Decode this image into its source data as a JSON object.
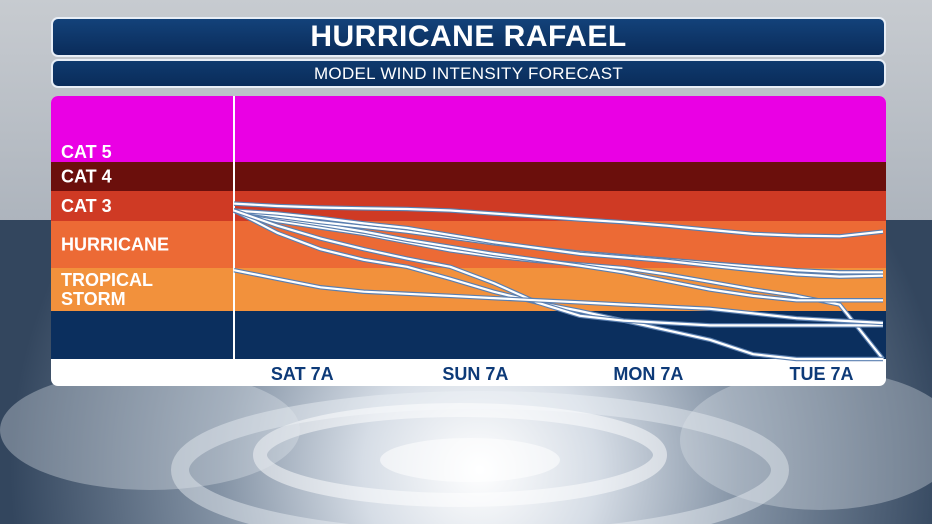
{
  "header": {
    "title": "HURRICANE RAFAEL",
    "subtitle": "MODEL WIND INTENSITY FORECAST"
  },
  "colors": {
    "cat5": "#ea00e4",
    "cat4": "#6b0f0c",
    "cat3": "#cf3a24",
    "hurricane": "#ec6a35",
    "tropical_storm": "#f2913c",
    "depression": "#0b2f5e",
    "title_bar": "#0a2c5a",
    "model_line": "#ffffff",
    "tick_text": "#0d3a78"
  },
  "chart_data": {
    "type": "line",
    "title": "HURRICANE RAFAEL",
    "subtitle": "MODEL WIND INTENSITY FORECAST",
    "xlabel": "",
    "ylabel": "",
    "x": [
      0,
      6,
      12,
      18,
      24,
      30,
      36,
      42,
      48,
      54,
      60,
      66,
      72,
      78,
      84,
      90
    ],
    "x_ticks": [
      {
        "label": "SAT  7A",
        "x": 6
      },
      {
        "label": "SUN  7A",
        "x": 30
      },
      {
        "label": "MON  7A",
        "x": 54
      },
      {
        "label": "TUE  7A",
        "x": 78
      }
    ],
    "xlim": [
      0,
      90
    ],
    "bands": [
      {
        "key": "cat5",
        "label": "CAT 5",
        "from": 3,
        "to": 7
      },
      {
        "key": "cat4",
        "label": "CAT 4",
        "from": 4,
        "to": 5
      },
      {
        "key": "cat3",
        "label": "CAT 3",
        "from": 3,
        "to": 4
      },
      {
        "key": "hurricane",
        "label": "HURRICANE",
        "from": 1,
        "to": 3
      },
      {
        "key": "tropical_storm",
        "label": "TROPICAL\nSTORM",
        "from": 0,
        "to": 1
      },
      {
        "key": "depression",
        "label": "",
        "from": -1,
        "to": 0
      }
    ],
    "ylim": [
      -1,
      7
    ],
    "series": [
      {
        "values": [
          3.58,
          3.5,
          3.45,
          3.42,
          3.4,
          3.35,
          3.25,
          3.15,
          3.05,
          2.95,
          2.8,
          2.62,
          2.45,
          2.38,
          2.35,
          2.55
        ]
      },
      {
        "values": [
          3.35,
          3.0,
          2.72,
          2.45,
          2.1,
          1.75,
          1.5,
          1.3,
          1.15,
          1.0,
          0.85,
          0.68,
          0.5,
          0.35,
          0.15,
          -1.0
        ]
      },
      {
        "values": [
          3.35,
          3.1,
          2.85,
          2.55,
          2.2,
          1.9,
          1.6,
          1.35,
          1.1,
          0.9,
          0.7,
          0.5,
          0.35,
          0.25,
          0.25,
          0.25
        ]
      },
      {
        "values": [
          3.35,
          3.15,
          2.95,
          2.75,
          2.55,
          2.3,
          2.05,
          1.85,
          1.65,
          1.5,
          1.35,
          1.2,
          1.05,
          0.95,
          0.9,
          0.9
        ]
      },
      {
        "values": [
          3.35,
          3.25,
          3.1,
          2.9,
          2.7,
          2.4,
          2.1,
          1.85,
          1.6,
          1.45,
          1.3,
          1.1,
          0.95,
          0.85,
          0.8,
          0.82
        ]
      },
      {
        "values": [
          3.35,
          2.5,
          1.8,
          1.35,
          1.05,
          0.75,
          0.45,
          0.2,
          0.0,
          -0.2,
          -0.4,
          -0.6,
          -0.9,
          -1.0,
          -1.0,
          -1.0
        ]
      },
      {
        "values": [
          3.35,
          2.8,
          2.25,
          1.8,
          1.4,
          1.05,
          0.65,
          0.2,
          -0.1,
          -0.2,
          -0.25,
          -0.3,
          -0.3,
          -0.3,
          -0.3,
          -0.3
        ]
      },
      {
        "values": [
          0.95,
          0.75,
          0.55,
          0.45,
          0.4,
          0.35,
          0.3,
          0.25,
          0.2,
          0.15,
          0.1,
          0.05,
          -0.05,
          -0.15,
          -0.2,
          -0.25
        ]
      }
    ],
    "grid": false,
    "legend": "none"
  }
}
